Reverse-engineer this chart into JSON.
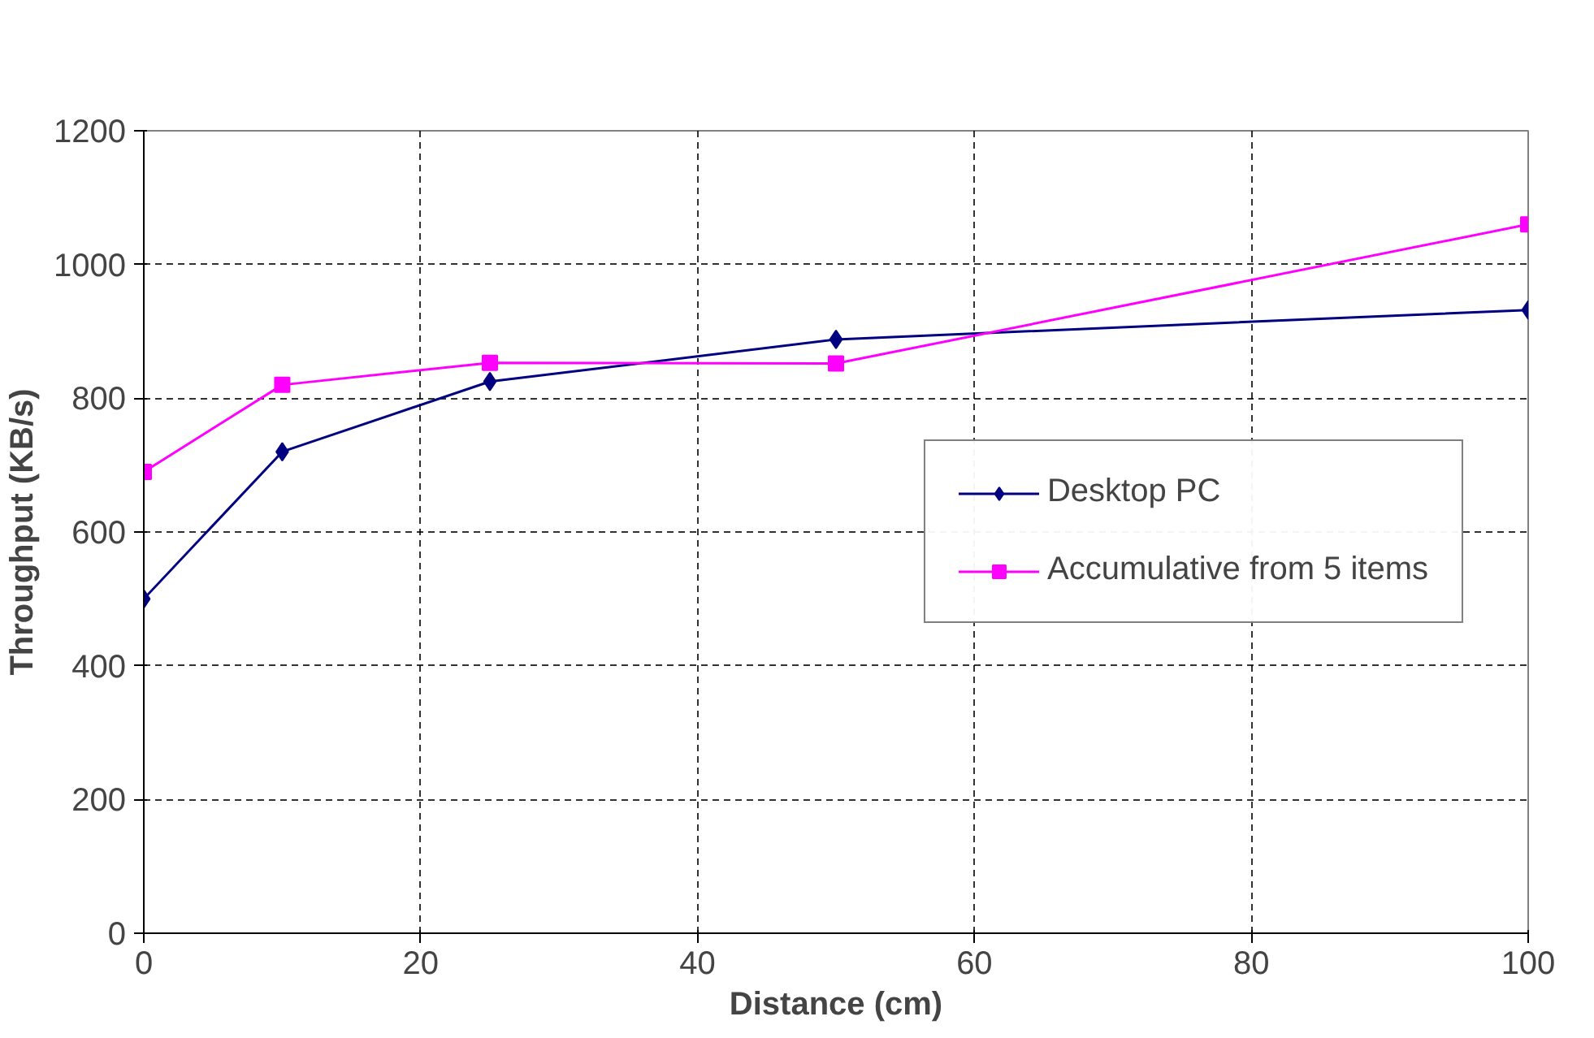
{
  "chart_data": {
    "type": "line",
    "xlabel": "Distance (cm)",
    "ylabel": "Throughput (KB/s)",
    "x": [
      0,
      10,
      25,
      50,
      100
    ],
    "series": [
      {
        "name": "Desktop PC",
        "color": "#000080",
        "marker": "diamond",
        "values": [
          500,
          720,
          825,
          888,
          932
        ]
      },
      {
        "name": "Accumulative from 5 items",
        "color": "#ff00ff",
        "marker": "square",
        "values": [
          690,
          820,
          853,
          852,
          1060
        ]
      }
    ],
    "xlim": [
      0,
      100
    ],
    "xticks": [
      0,
      20,
      40,
      60,
      80,
      100
    ],
    "ylim": [
      0,
      1200
    ],
    "yticks": [
      0,
      200,
      400,
      600,
      800,
      1000,
      1200
    ],
    "grid": true,
    "legend": "right",
    "line_style": "solid"
  }
}
